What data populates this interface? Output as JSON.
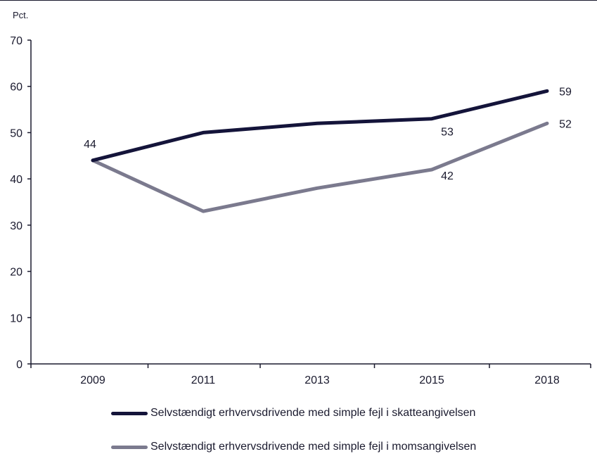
{
  "chart_data": {
    "type": "line",
    "unit_label": "Pct.",
    "x": [
      "2009",
      "2011",
      "2013",
      "2015",
      "2018"
    ],
    "ylim": [
      0,
      70
    ],
    "yticks": [
      0,
      10,
      20,
      30,
      40,
      50,
      60,
      70
    ],
    "grid": false,
    "legend_position": "bottom",
    "series": [
      {
        "name": "Selvstændigt erhvervsdrivende med simple fejl i skatteangivelsen",
        "color": "#14143a",
        "values": [
          44,
          50,
          52,
          53,
          59
        ],
        "labels": [
          "44",
          "",
          "",
          "53",
          "59"
        ]
      },
      {
        "name": "Selvstændigt erhvervsdrivende med simple fejl i momsangivelsen",
        "color": "#7b7a8e",
        "values": [
          44,
          33,
          38,
          42,
          52
        ],
        "labels": [
          "",
          "",
          "",
          "42",
          "52"
        ]
      }
    ]
  }
}
